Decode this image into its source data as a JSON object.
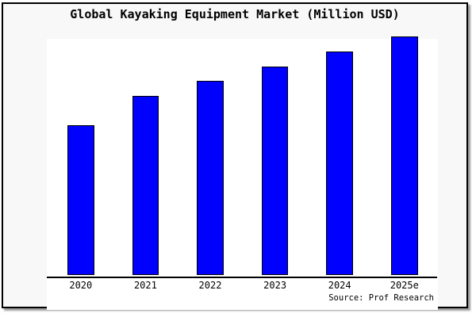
{
  "colors": {
    "bar_fill": "#0000ff",
    "bar_edge": "#000000",
    "figure_background": "#f8f8f8",
    "plot_background": "#ffffff",
    "frame_border": "#000000",
    "text": "#000000"
  },
  "footer": {
    "source": "Source: Prof Research"
  },
  "chart_data": {
    "type": "bar",
    "title": "Global Kayaking Equipment Market (Million USD)",
    "categories": [
      "2020",
      "2021",
      "2022",
      "2023",
      "2024",
      "2025e"
    ],
    "values": [
      62.8,
      75.1,
      81.4,
      87.4,
      93.7,
      100
    ],
    "unit": "relative index (tallest bar = 100; no value axis shown in image)",
    "xlabel": "",
    "ylabel": "",
    "ylim": [
      0,
      100.3
    ],
    "grid": false,
    "legend": null,
    "source_note": "Source: Prof Research"
  }
}
